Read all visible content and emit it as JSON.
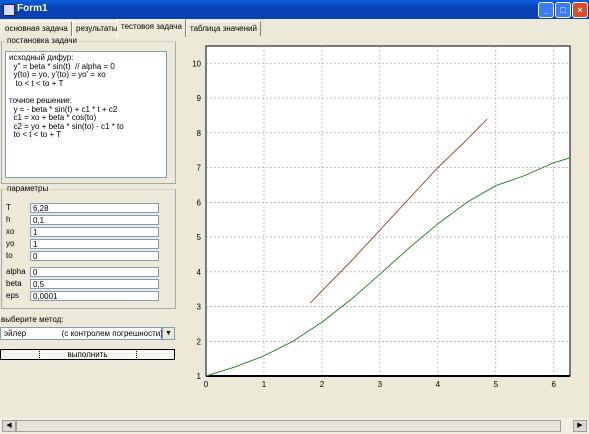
{
  "window": {
    "title": "Form1"
  },
  "tabs": [
    {
      "label": "основная задача"
    },
    {
      "label": "результаты"
    },
    {
      "label": "тестовоя задача"
    },
    {
      "label": "таблица значений"
    }
  ],
  "problem": {
    "title": "постановка задачи",
    "text": "исходный дифур:\n  y'' = beta * sin(t)  // alpha = 0\n  y(to) = yo, y'(to) = yo' = xo\n   to < t < to + T\n\nточное решение:\n  y = - beta * sin(t) + c1 * t + c2\n  c1 = xo + beta * cos(to)\n  c2 = yo + beta * sin(to) - c1 * to\n  to < t < to + T"
  },
  "params": {
    "title": "параметры",
    "fields": [
      {
        "label": "T",
        "value": "6,28"
      },
      {
        "label": "h",
        "value": "0,1"
      },
      {
        "label": "xo",
        "value": "1"
      },
      {
        "label": "yo",
        "value": "1"
      },
      {
        "label": "to",
        "value": "0"
      }
    ],
    "fields2": [
      {
        "label": "alpha",
        "value": "0"
      },
      {
        "label": "beta",
        "value": "0,5"
      },
      {
        "label": "eps",
        "value": "0,0001"
      }
    ]
  },
  "method": {
    "label": "выберите метод:",
    "selected": "эйлер                (с контролем погрешности)"
  },
  "run_button": "выполнить",
  "chart_data": {
    "type": "line",
    "title": "",
    "xlabel": "",
    "ylabel": "",
    "xlim": [
      0,
      6.28
    ],
    "ylim": [
      1,
      10.5
    ],
    "xticks": [
      "0",
      "1",
      "2",
      "3",
      "4",
      "5",
      "6"
    ],
    "yticks": [
      "1",
      "2",
      "3",
      "4",
      "5",
      "6",
      "7",
      "8",
      "9",
      "10"
    ],
    "grid": true,
    "series": [
      {
        "color": "#2e8b2e",
        "x": [
          0,
          0.5,
          1,
          1.5,
          2,
          2.5,
          3,
          3.5,
          4,
          4.5,
          5,
          5.5,
          6,
          6.28
        ],
        "y": [
          1,
          1.26,
          1.58,
          2.0,
          2.55,
          3.2,
          3.93,
          4.68,
          5.38,
          6.0,
          6.48,
          6.77,
          7.14,
          7.28
        ]
      },
      {
        "color": "#a0522d",
        "x": [
          1.8,
          2,
          2.5,
          3,
          3.5,
          4,
          4.5,
          4.85
        ],
        "y": [
          3.1,
          3.45,
          4.3,
          5.2,
          6.1,
          7.0,
          7.8,
          8.4
        ]
      }
    ]
  }
}
